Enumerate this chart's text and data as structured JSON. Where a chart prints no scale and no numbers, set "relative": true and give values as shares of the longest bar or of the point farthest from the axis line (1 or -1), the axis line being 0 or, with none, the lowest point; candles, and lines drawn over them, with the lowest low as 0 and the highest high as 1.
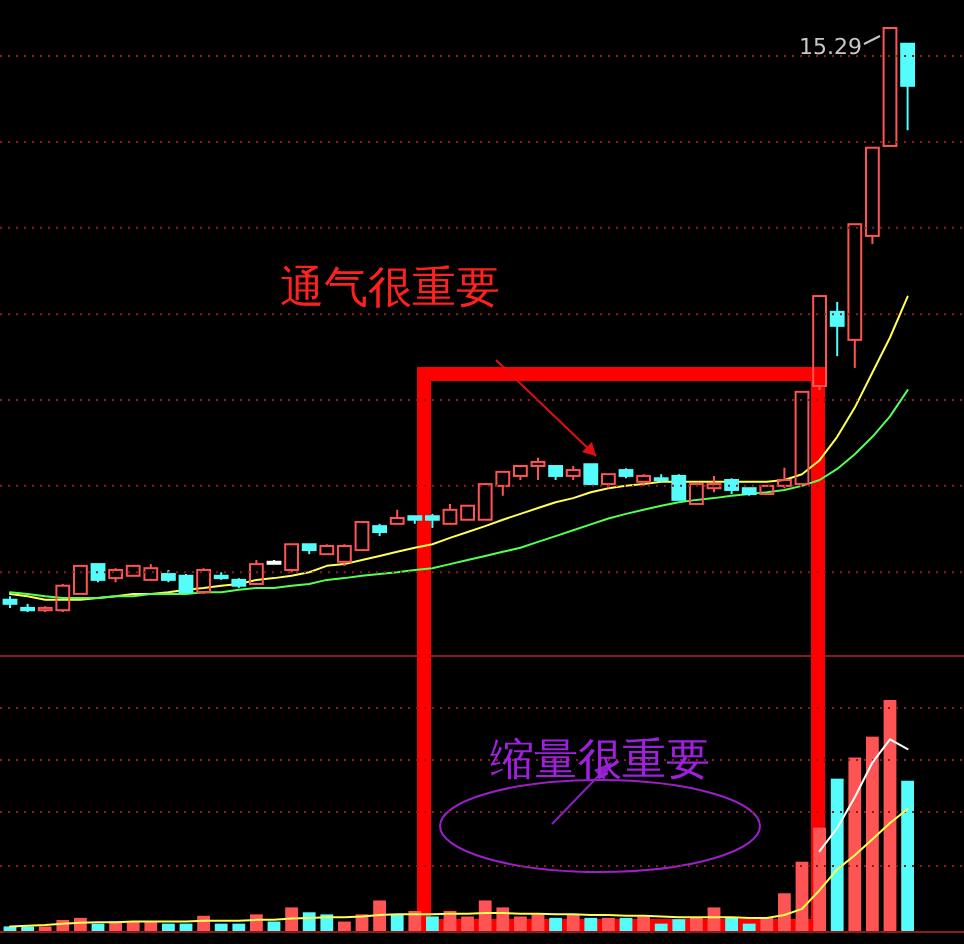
{
  "chart_data": [
    {
      "type": "candlestick",
      "relative": true,
      "categories": [
        null,
        null,
        null,
        null,
        null,
        null,
        null,
        null,
        null,
        null,
        null,
        null,
        null,
        null,
        null,
        null,
        null,
        null,
        null,
        null,
        null,
        null,
        null,
        null,
        null,
        null,
        null,
        null,
        null,
        null,
        null,
        null,
        null,
        null,
        null,
        null,
        null,
        null,
        null,
        null,
        null,
        null,
        null,
        null,
        null,
        null,
        null,
        null,
        null,
        null,
        null,
        null
      ],
      "ohlc": [
        [
          0.021,
          0.027,
          0.007,
          0.014
        ],
        [
          0.007,
          0.014,
          0.0,
          0.003
        ],
        [
          0.003,
          0.01,
          0.0,
          0.007
        ],
        [
          0.003,
          0.048,
          0.0,
          0.045
        ],
        [
          0.031,
          0.079,
          0.031,
          0.079
        ],
        [
          0.082,
          0.082,
          0.051,
          0.055
        ],
        [
          0.058,
          0.075,
          0.051,
          0.072
        ],
        [
          0.062,
          0.079,
          0.062,
          0.079
        ],
        [
          0.055,
          0.082,
          0.055,
          0.075
        ],
        [
          0.065,
          0.072,
          0.051,
          0.055
        ],
        [
          0.062,
          0.065,
          0.034,
          0.034
        ],
        [
          0.034,
          0.075,
          0.031,
          0.072
        ],
        [
          0.062,
          0.068,
          0.055,
          0.058
        ],
        [
          0.055,
          0.058,
          0.041,
          0.045
        ],
        [
          0.048,
          0.089,
          0.048,
          0.082
        ],
        [
          0.086,
          0.089,
          0.082,
          0.086
        ],
        [
          0.072,
          0.116,
          0.068,
          0.116
        ],
        [
          0.116,
          0.116,
          0.099,
          0.106
        ],
        [
          0.099,
          0.116,
          0.099,
          0.113
        ],
        [
          0.086,
          0.116,
          0.079,
          0.113
        ],
        [
          0.106,
          0.154,
          0.106,
          0.154
        ],
        [
          0.147,
          0.151,
          0.13,
          0.137
        ],
        [
          0.151,
          0.175,
          0.151,
          0.161
        ],
        [
          0.164,
          0.164,
          0.151,
          0.158
        ],
        [
          0.164,
          0.168,
          0.144,
          0.158
        ],
        [
          0.151,
          0.185,
          0.151,
          0.175
        ],
        [
          0.158,
          0.182,
          0.158,
          0.182
        ],
        [
          0.158,
          0.219,
          0.158,
          0.219
        ],
        [
          0.216,
          0.24,
          0.199,
          0.24
        ],
        [
          0.233,
          0.25,
          0.226,
          0.25
        ],
        [
          0.25,
          0.264,
          0.226,
          0.257
        ],
        [
          0.25,
          0.25,
          0.226,
          0.233
        ],
        [
          0.233,
          0.25,
          0.226,
          0.243
        ],
        [
          0.253,
          0.253,
          0.219,
          0.219
        ],
        [
          0.219,
          0.236,
          0.212,
          0.236
        ],
        [
          0.243,
          0.246,
          0.229,
          0.233
        ],
        [
          0.223,
          0.236,
          0.216,
          0.233
        ],
        [
          0.229,
          0.236,
          0.223,
          0.226
        ],
        [
          0.233,
          0.236,
          0.192,
          0.192
        ],
        [
          0.185,
          0.219,
          0.185,
          0.219
        ],
        [
          0.212,
          0.233,
          0.205,
          0.219
        ],
        [
          0.226,
          0.229,
          0.202,
          0.209
        ],
        [
          0.212,
          0.212,
          0.199,
          0.202
        ],
        [
          0.202,
          0.216,
          0.202,
          0.216
        ],
        [
          0.216,
          0.247,
          0.212,
          0.226
        ],
        [
          0.219,
          0.377,
          0.219,
          0.377
        ],
        [
          0.387,
          0.541,
          0.38,
          0.541
        ],
        [
          0.514,
          0.531,
          0.438,
          0.49
        ],
        [
          0.466,
          0.664,
          0.418,
          0.664
        ],
        [
          0.644,
          0.795,
          0.63,
          0.795
        ],
        [
          0.798,
          1.0,
          0.798,
          1.0
        ],
        [
          0.973,
          0.973,
          0.825,
          0.901
        ]
      ],
      "colors": [
        "#54fcfc",
        "#54fcfc",
        "#ff5454",
        "#ff5454",
        "#ff5454",
        "#54fcfc",
        "#ff5454",
        "#ff5454",
        "#ff5454",
        "#54fcfc",
        "#54fcfc",
        "#ff5454",
        "#54fcfc",
        "#54fcfc",
        "#ff5454",
        "#ffffff",
        "#ff5454",
        "#54fcfc",
        "#ff5454",
        "#ff5454",
        "#ff5454",
        "#54fcfc",
        "#ff5454",
        "#54fcfc",
        "#54fcfc",
        "#ff5454",
        "#ff5454",
        "#ff5454",
        "#ff5454",
        "#ff5454",
        "#ff5454",
        "#54fcfc",
        "#ff5454",
        "#54fcfc",
        "#ff5454",
        "#54fcfc",
        "#ff5454",
        "#54fcfc",
        "#54fcfc",
        "#ff5454",
        "#ff5454",
        "#54fcfc",
        "#54fcfc",
        "#ff5454",
        "#ff5454",
        "#ff5454",
        "#ff5454",
        "#54fcfc",
        "#ff5454",
        "#ff5454",
        "#ff5454",
        "#54fcfc"
      ],
      "series": [
        {
          "type": "line",
          "color": "#ffff54",
          "values": [
            0.031,
            0.027,
            0.021,
            0.021,
            0.021,
            0.024,
            0.027,
            0.031,
            0.031,
            0.034,
            0.038,
            0.041,
            0.045,
            0.048,
            0.055,
            0.058,
            0.062,
            0.068,
            0.079,
            0.082,
            0.089,
            0.096,
            0.103,
            0.11,
            0.116,
            0.127,
            0.137,
            0.147,
            0.158,
            0.168,
            0.178,
            0.188,
            0.195,
            0.205,
            0.212,
            0.216,
            0.219,
            0.223,
            0.223,
            0.223,
            0.223,
            0.223,
            0.223,
            0.223,
            0.226,
            0.236,
            0.26,
            0.3,
            0.35,
            0.41,
            0.47,
            0.54
          ]
        },
        {
          "type": "line",
          "color": "#54ff54",
          "values": [
            0.034,
            0.031,
            0.027,
            0.024,
            0.024,
            0.024,
            0.027,
            0.027,
            0.031,
            0.031,
            0.031,
            0.034,
            0.034,
            0.038,
            0.041,
            0.041,
            0.045,
            0.048,
            0.055,
            0.058,
            0.062,
            0.065,
            0.068,
            0.072,
            0.075,
            0.082,
            0.089,
            0.096,
            0.103,
            0.11,
            0.12,
            0.13,
            0.14,
            0.15,
            0.16,
            0.168,
            0.175,
            0.182,
            0.188,
            0.192,
            0.195,
            0.199,
            0.202,
            0.205,
            0.209,
            0.216,
            0.226,
            0.245,
            0.27,
            0.3,
            0.335,
            0.38
          ]
        }
      ],
      "ref_lines": [
        {
          "axis": "y",
          "value": 0.952,
          "line_style": "dotted",
          "color": "#8a1c1c"
        },
        {
          "axis": "y",
          "value": 0.805,
          "line_style": "dotted",
          "color": "#8a1c1c"
        },
        {
          "axis": "y",
          "value": 0.658,
          "line_style": "dotted",
          "color": "#8a1c1c"
        },
        {
          "axis": "y",
          "value": 0.51,
          "line_style": "dotted",
          "color": "#8a1c1c"
        },
        {
          "axis": "y",
          "value": 0.363,
          "line_style": "dotted",
          "color": "#8a1c1c"
        },
        {
          "axis": "y",
          "value": 0.216,
          "line_style": "dotted",
          "color": "#8a1c1c"
        },
        {
          "axis": "y",
          "value": 0.068,
          "line_style": "dotted",
          "color": "#8a1c1c"
        }
      ],
      "annotations": [
        "通气很重要",
        "15.29"
      ]
    },
    {
      "type": "bar",
      "relative": true,
      "categories": [
        null,
        null,
        null,
        null,
        null,
        null,
        null,
        null,
        null,
        null,
        null,
        null,
        null,
        null,
        null,
        null,
        null,
        null,
        null,
        null,
        null,
        null,
        null,
        null,
        null,
        null,
        null,
        null,
        null,
        null,
        null,
        null,
        null,
        null,
        null,
        null,
        null,
        null,
        null,
        null,
        null,
        null,
        null,
        null,
        null,
        null,
        null,
        null,
        null,
        null,
        null,
        null
      ],
      "colors": [
        "#54fcfc",
        "#54fcfc",
        "#ff5454",
        "#ff5454",
        "#ff5454",
        "#54fcfc",
        "#ff5454",
        "#ff5454",
        "#ff5454",
        "#54fcfc",
        "#54fcfc",
        "#ff5454",
        "#54fcfc",
        "#54fcfc",
        "#ff5454",
        "#54fcfc",
        "#ff5454",
        "#54fcfc",
        "#54fcfc",
        "#ff5454",
        "#ff5454",
        "#ff5454",
        "#54fcfc",
        "#ff5454",
        "#54fcfc",
        "#ff5454",
        "#ff5454",
        "#ff5454",
        "#ff5454",
        "#ff5454",
        "#ff5454",
        "#54fcfc",
        "#ff5454",
        "#54fcfc",
        "#ff5454",
        "#54fcfc",
        "#ff5454",
        "#54fcfc",
        "#54fcfc",
        "#ff5454",
        "#ff5454",
        "#54fcfc",
        "#54fcfc",
        "#ff5454",
        "#ff5454",
        "#ff5454",
        "#ff5454",
        "#54fcfc",
        "#ff5454",
        "#ff5454",
        "#ff5454",
        "#54fcfc"
      ],
      "values": [
        0.024,
        0.024,
        0.024,
        0.052,
        0.061,
        0.036,
        0.045,
        0.045,
        0.045,
        0.036,
        0.036,
        0.07,
        0.036,
        0.036,
        0.076,
        0.045,
        0.106,
        0.085,
        0.076,
        0.045,
        0.076,
        0.136,
        0.076,
        0.091,
        0.067,
        0.091,
        0.067,
        0.136,
        0.106,
        0.067,
        0.076,
        0.061,
        0.076,
        0.061,
        0.061,
        0.061,
        0.067,
        0.036,
        0.055,
        0.061,
        0.106,
        0.061,
        0.036,
        0.061,
        0.167,
        0.303,
        0.45,
        0.661,
        0.752,
        0.842,
        1,
        0.652
      ],
      "ref_lines": [
        {
          "axis": "y",
          "value": 0.966,
          "line_style": "dotted",
          "color": "#8a1c1c"
        },
        {
          "axis": "y",
          "value": 0.741,
          "line_style": "dotted",
          "color": "#8a1c1c"
        },
        {
          "axis": "y",
          "value": 0.517,
          "line_style": "dotted",
          "color": "#8a1c1c"
        },
        {
          "axis": "y",
          "value": 0.284,
          "line_style": "dotted",
          "color": "#8a1c1c"
        }
      ],
      "annotations": [
        "缩量很重要"
      ]
    },
    {
      "type": "line",
      "relative": true,
      "categories": [
        null,
        null,
        null,
        null,
        null,
        null,
        null,
        null,
        null,
        null,
        null,
        null,
        null,
        null,
        null,
        null,
        null,
        null,
        null,
        null,
        null,
        null,
        null,
        null,
        null,
        null,
        null,
        null,
        null,
        null,
        null,
        null,
        null,
        null,
        null,
        null,
        null,
        null,
        null,
        null,
        null,
        null,
        null,
        null,
        null,
        null,
        null,
        null,
        null,
        null,
        null,
        null
      ],
      "series": [
        {
          "color": "#ffff54",
          "values": [
            0.029,
            0.033,
            0.036,
            0.043,
            0.048,
            0.051,
            0.051,
            0.054,
            0.054,
            0.054,
            0.054,
            0.058,
            0.058,
            0.058,
            0.063,
            0.063,
            0.07,
            0.073,
            0.077,
            0.077,
            0.081,
            0.088,
            0.092,
            0.092,
            0.092,
            0.095,
            0.095,
            0.099,
            0.099,
            0.095,
            0.095,
            0.092,
            0.092,
            0.088,
            0.088,
            0.084,
            0.084,
            0.081,
            0.077,
            0.077,
            0.077,
            0.077,
            0.073,
            0.073,
            0.088,
            0.12,
            0.217,
            0.325,
            0.398,
            0.482,
            0.566,
            0.639
          ]
        },
        {
          "color": "#ffffff",
          "values": [
            null,
            null,
            null,
            null,
            null,
            null,
            null,
            null,
            null,
            null,
            null,
            null,
            null,
            null,
            null,
            null,
            null,
            null,
            null,
            null,
            null,
            null,
            null,
            null,
            null,
            null,
            null,
            null,
            null,
            null,
            null,
            null,
            null,
            null,
            null,
            null,
            null,
            null,
            null,
            null,
            null,
            null,
            null,
            null,
            null,
            null,
            0.42,
            0.54,
            0.7,
            0.88,
            1,
            0.95
          ]
        }
      ]
    }
  ]
}
